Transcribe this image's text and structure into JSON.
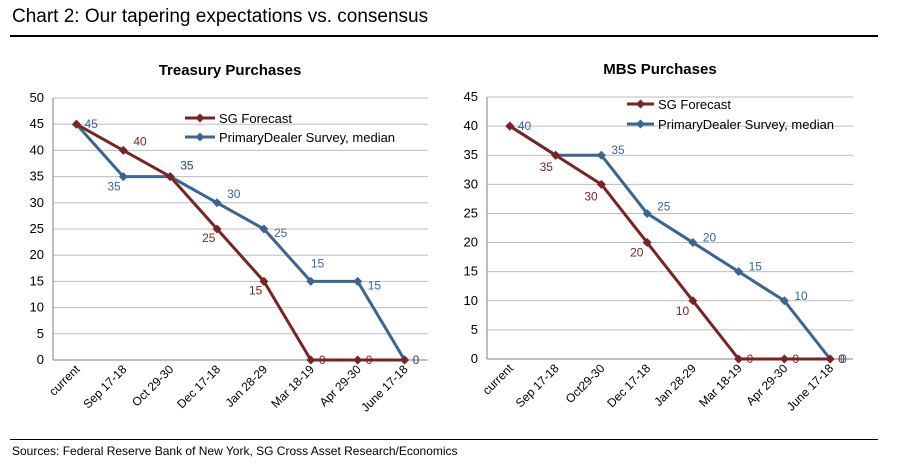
{
  "header": {
    "title": "Chart 2: Our tapering expectations vs. consensus"
  },
  "footer": {
    "source": "Sources: Federal Reserve Bank of New York, SG Cross Asset Research/Economics"
  },
  "colors": {
    "sg": "#7b2323",
    "pd": "#3a6592",
    "grid": "#bdbdbd",
    "axis": "#7f7f7f"
  },
  "chart_data": [
    {
      "type": "line",
      "title": "Treasury Purchases",
      "categories": [
        "current",
        "Sep 17-18",
        "Oct 29-30",
        "Dec 17-18",
        "Jan 28-29",
        "Mar 18-19",
        "Apr 29-30",
        "June 17-18"
      ],
      "yticks": [
        0,
        5,
        10,
        15,
        20,
        25,
        30,
        35,
        40,
        45,
        50
      ],
      "ylim": [
        0,
        50
      ],
      "legend_position": "top-right",
      "series": [
        {
          "name": "SG Forecast",
          "values": [
            45,
            40,
            35,
            25,
            15,
            0,
            0,
            0
          ],
          "labels": [
            "",
            "40",
            "35",
            "25",
            "15",
            "0",
            "0",
            "0"
          ]
        },
        {
          "name": "PrimaryDealer Survey, median",
          "values": [
            45,
            35,
            35,
            30,
            25,
            15,
            15,
            0
          ],
          "labels": [
            "45",
            "35",
            "35",
            "30",
            "25",
            "15",
            "15",
            "0"
          ]
        }
      ]
    },
    {
      "type": "line",
      "title": "MBS Purchases",
      "categories": [
        "current",
        "Sep 17-18",
        "Oct29-30",
        "Dec 17-18",
        "Jan 28-29",
        "Mar 18-19",
        "Apr 29-30",
        "June 17-18"
      ],
      "yticks": [
        0,
        5,
        10,
        15,
        20,
        25,
        30,
        35,
        40,
        45
      ],
      "ylim": [
        0,
        45
      ],
      "legend_position": "top-right",
      "series": [
        {
          "name": "SG Forecast",
          "values": [
            40,
            35,
            30,
            20,
            10,
            0,
            0,
            0
          ],
          "labels": [
            "",
            "35",
            "30",
            "20",
            "10",
            "0",
            "0",
            "0"
          ]
        },
        {
          "name": "PrimaryDealer Survey, median",
          "values": [
            40,
            35,
            35,
            25,
            20,
            15,
            10,
            0
          ],
          "labels": [
            "40",
            "",
            "35",
            "25",
            "20",
            "15",
            "10",
            "0"
          ]
        }
      ]
    }
  ]
}
